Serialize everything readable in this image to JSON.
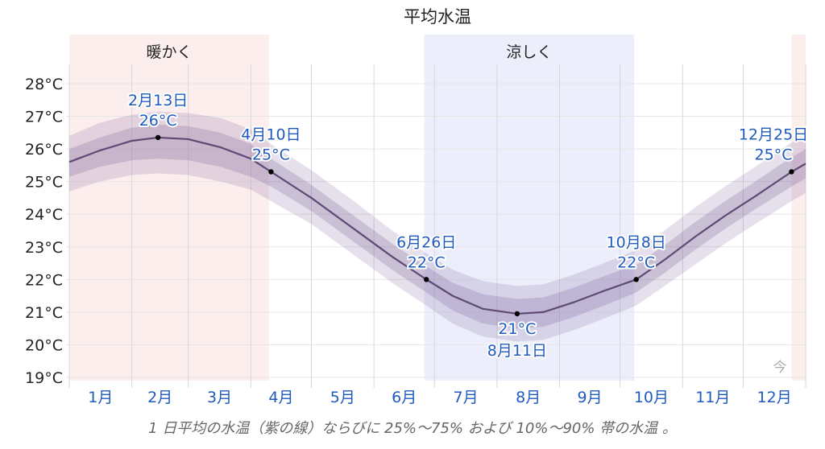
{
  "title": "平均水温",
  "caption": "1 日平均の水温（紫の線）ならびに 25%～75% および 10%～90% 帯の水温 。",
  "seasons": [
    {
      "label": "暖かく",
      "start_day": 0,
      "end_day": 99,
      "color": "#fdeeee"
    },
    {
      "label": "涼しく",
      "start_day": 176,
      "end_day": 280,
      "color": "#eceefb"
    },
    {
      "label": "",
      "start_day": 358,
      "end_day": 365,
      "color": "#fdeeee"
    }
  ],
  "today_label": "今",
  "colors": {
    "line": "#5e4a75",
    "band_inner": "#b8a8c6",
    "band_outer": "#d9d0e0",
    "annotation": "#1f5bbf"
  },
  "chart_data": {
    "type": "line",
    "title": "平均水温",
    "xlabel": "",
    "ylabel": "",
    "ylim": [
      19,
      28
    ],
    "y_ticks": [
      "28°C",
      "27°C",
      "26°C",
      "25°C",
      "24°C",
      "23°C",
      "22°C",
      "21°C",
      "20°C",
      "19°C"
    ],
    "x_ticks": [
      "1月",
      "2月",
      "3月",
      "4月",
      "5月",
      "6月",
      "7月",
      "8月",
      "9月",
      "10月",
      "11月",
      "12月"
    ],
    "grid": true,
    "x_days": [
      0,
      15,
      31,
      44,
      59,
      75,
      90,
      100,
      120,
      140,
      160,
      177,
      190,
      205,
      222,
      235,
      250,
      265,
      281,
      295,
      310,
      325,
      340,
      358,
      365
    ],
    "series": [
      {
        "name": "平均水温",
        "values": [
          25.6,
          25.95,
          26.25,
          26.35,
          26.3,
          26.05,
          25.7,
          25.3,
          24.5,
          23.6,
          22.7,
          22.0,
          21.5,
          21.1,
          20.95,
          21.0,
          21.3,
          21.65,
          22.0,
          22.6,
          23.3,
          23.95,
          24.55,
          25.3,
          25.55
        ]
      },
      {
        "name": "25%",
        "values": [
          25.15,
          25.45,
          25.65,
          25.7,
          25.65,
          25.45,
          25.15,
          24.85,
          24.1,
          23.2,
          22.3,
          21.6,
          21.05,
          20.65,
          20.5,
          20.55,
          20.85,
          21.2,
          21.6,
          22.2,
          22.9,
          23.55,
          24.15,
          24.85,
          25.1
        ]
      },
      {
        "name": "75%",
        "values": [
          26.0,
          26.35,
          26.65,
          26.75,
          26.7,
          26.5,
          26.15,
          25.7,
          24.9,
          24.0,
          23.1,
          22.4,
          21.9,
          21.55,
          21.4,
          21.45,
          21.75,
          22.1,
          22.45,
          23.05,
          23.75,
          24.4,
          25.0,
          25.75,
          26.0
        ]
      },
      {
        "name": "10%",
        "values": [
          24.7,
          25.0,
          25.2,
          25.25,
          25.2,
          25.0,
          24.75,
          24.4,
          23.7,
          22.8,
          21.9,
          21.2,
          20.65,
          20.25,
          20.1,
          20.15,
          20.45,
          20.8,
          21.2,
          21.8,
          22.45,
          23.1,
          23.7,
          24.4,
          24.65
        ]
      },
      {
        "name": "90%",
        "values": [
          26.4,
          26.8,
          27.05,
          27.15,
          27.1,
          26.95,
          26.6,
          26.15,
          25.35,
          24.45,
          23.5,
          22.8,
          22.3,
          21.95,
          21.8,
          21.85,
          22.15,
          22.5,
          22.9,
          23.5,
          24.2,
          24.85,
          25.45,
          26.2,
          26.4
        ]
      }
    ],
    "annotations": [
      {
        "date": "2月13日",
        "value": "26°C",
        "day": 44,
        "temp": 26.35,
        "position": "above"
      },
      {
        "date": "4月10日",
        "value": "25°C",
        "day": 100,
        "temp": 25.3,
        "position": "above"
      },
      {
        "date": "6月26日",
        "value": "22°C",
        "day": 177,
        "temp": 22.0,
        "position": "above"
      },
      {
        "date": "8月11日",
        "value": "21°C",
        "day": 222,
        "temp": 20.95,
        "position": "below"
      },
      {
        "date": "10月8日",
        "value": "22°C",
        "day": 281,
        "temp": 22.0,
        "position": "above"
      },
      {
        "date": "12月25日",
        "value": "25°C",
        "day": 358,
        "temp": 25.3,
        "position": "above"
      }
    ],
    "legend": "1 日平均の水温（紫の線）ならびに 25%～75% および 10%～90% 帯の水温 。"
  }
}
